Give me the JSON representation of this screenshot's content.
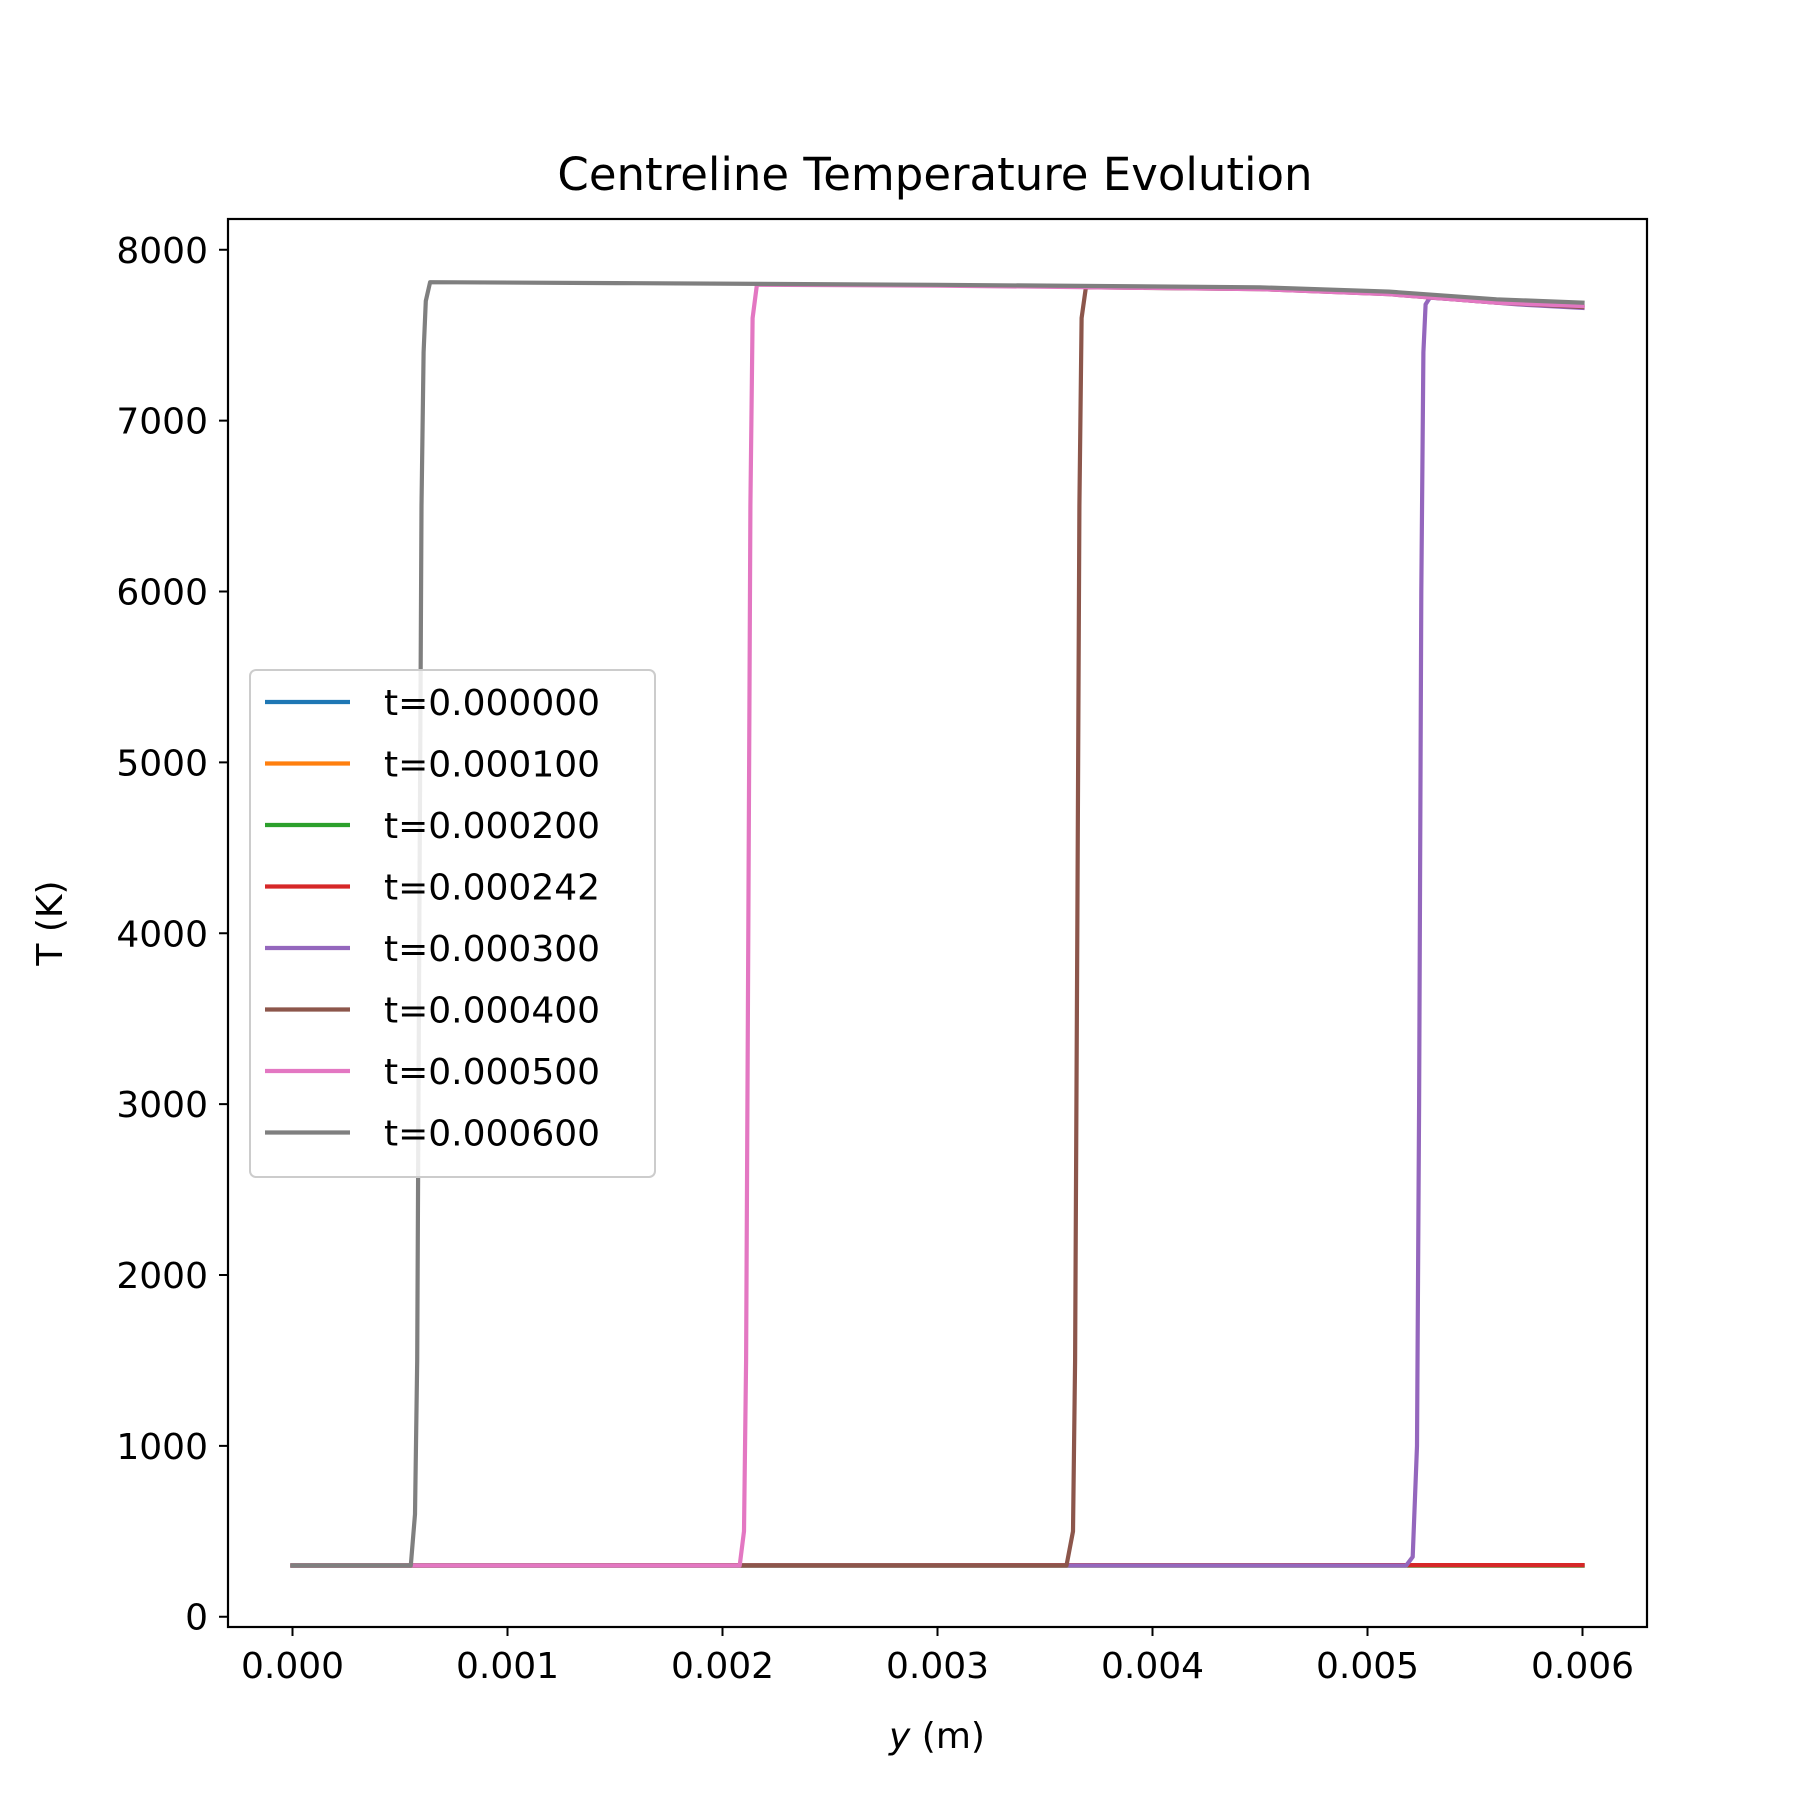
{
  "chart_data": {
    "type": "line",
    "title": "Centreline Temperature Evolution",
    "xlabel_var": "y",
    "xlabel_unit": " (m)",
    "ylabel": "T (K)",
    "xlim": [
      -0.0003,
      0.0063
    ],
    "ylim": [
      -60,
      8180
    ],
    "xticks": [
      0.0,
      0.001,
      0.002,
      0.003,
      0.004,
      0.005,
      0.006
    ],
    "xtick_labels": [
      "0.000",
      "0.001",
      "0.002",
      "0.003",
      "0.004",
      "0.005",
      "0.006"
    ],
    "yticks": [
      0,
      1000,
      2000,
      3000,
      4000,
      5000,
      6000,
      7000,
      8000
    ],
    "ytick_labels": [
      "0",
      "1000",
      "2000",
      "3000",
      "4000",
      "5000",
      "6000",
      "7000",
      "8000"
    ],
    "grid": false,
    "legend_position": "center-left",
    "series": [
      {
        "name": "t=0.000000",
        "color": "#1f77b4",
        "points": [
          [
            0.0,
            300
          ],
          [
            0.006,
            300
          ]
        ]
      },
      {
        "name": "t=0.000100",
        "color": "#ff7f0e",
        "points": [
          [
            0.0,
            300
          ],
          [
            0.006,
            300
          ]
        ]
      },
      {
        "name": "t=0.000200",
        "color": "#2ca02c",
        "points": [
          [
            0.0,
            300
          ],
          [
            0.006,
            300
          ]
        ]
      },
      {
        "name": "t=0.000242",
        "color": "#d62728",
        "points": [
          [
            0.0,
            300
          ],
          [
            0.006,
            302
          ]
        ]
      },
      {
        "name": "t=0.000300",
        "color": "#9467bd",
        "points": [
          [
            0.0,
            300
          ],
          [
            0.00518,
            300
          ],
          [
            0.00521,
            350
          ],
          [
            0.00523,
            1000
          ],
          [
            0.00524,
            3000
          ],
          [
            0.00525,
            6000
          ],
          [
            0.00526,
            7400
          ],
          [
            0.00527,
            7680
          ],
          [
            0.00529,
            7720
          ],
          [
            0.0054,
            7710
          ],
          [
            0.0057,
            7680
          ],
          [
            0.006,
            7660
          ]
        ]
      },
      {
        "name": "t=0.000400",
        "color": "#8c564b",
        "points": [
          [
            0.0,
            300
          ],
          [
            0.0036,
            300
          ],
          [
            0.00363,
            500
          ],
          [
            0.00364,
            1500
          ],
          [
            0.00365,
            4000
          ],
          [
            0.00366,
            6500
          ],
          [
            0.00367,
            7600
          ],
          [
            0.00369,
            7780
          ],
          [
            0.0045,
            7770
          ],
          [
            0.0051,
            7740
          ],
          [
            0.0056,
            7690
          ],
          [
            0.006,
            7665
          ]
        ]
      },
      {
        "name": "t=0.000500",
        "color": "#e377c2",
        "points": [
          [
            0.0,
            300
          ],
          [
            0.00208,
            300
          ],
          [
            0.0021,
            500
          ],
          [
            0.00211,
            1500
          ],
          [
            0.00212,
            4000
          ],
          [
            0.00213,
            6500
          ],
          [
            0.00214,
            7600
          ],
          [
            0.00216,
            7795
          ],
          [
            0.003,
            7790
          ],
          [
            0.0045,
            7770
          ],
          [
            0.0051,
            7740
          ],
          [
            0.0056,
            7690
          ],
          [
            0.006,
            7670
          ]
        ]
      },
      {
        "name": "t=0.000600",
        "color": "#7f7f7f",
        "points": [
          [
            0.0,
            300
          ],
          [
            0.00055,
            300
          ],
          [
            0.00057,
            600
          ],
          [
            0.00058,
            1500
          ],
          [
            0.00059,
            4000
          ],
          [
            0.0006,
            6500
          ],
          [
            0.00061,
            7400
          ],
          [
            0.00062,
            7700
          ],
          [
            0.00064,
            7810
          ],
          [
            0.0015,
            7805
          ],
          [
            0.003,
            7795
          ],
          [
            0.0045,
            7780
          ],
          [
            0.0051,
            7755
          ],
          [
            0.0056,
            7710
          ],
          [
            0.006,
            7690
          ]
        ]
      }
    ]
  }
}
